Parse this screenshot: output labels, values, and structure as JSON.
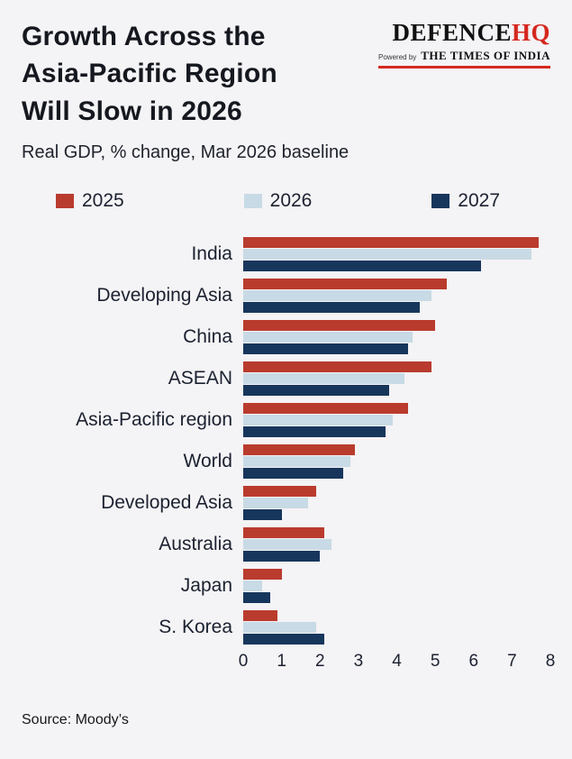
{
  "header": {
    "title_lines": [
      "Growth Across the",
      "Asia-Pacific Region",
      "Will Slow in 2026"
    ],
    "subtitle": "Real GDP, % change, Mar 2026 baseline",
    "logo": {
      "name_black": "DEFENCE",
      "name_red": "HQ",
      "powered_by": "Powered by",
      "brand": "THE TIMES OF INDIA",
      "accent_color": "#d5281e"
    }
  },
  "legend": [
    {
      "label": "2025",
      "color": "#b93b2e"
    },
    {
      "label": "2026",
      "color": "#c8dae5"
    },
    {
      "label": "2027",
      "color": "#17365c"
    }
  ],
  "chart_data": {
    "type": "bar",
    "orientation": "horizontal",
    "title": "Growth Across the Asia-Pacific Region Will Slow in 2026",
    "subtitle": "Real GDP, % change, Mar 2026 baseline",
    "categories": [
      "India",
      "Developing Asia",
      "China",
      "ASEAN",
      "Asia-Pacific region",
      "World",
      "Developed Asia",
      "Australia",
      "Japan",
      "S. Korea"
    ],
    "series": [
      {
        "name": "2025",
        "color": "#b93b2e",
        "values": [
          7.7,
          5.3,
          5.0,
          4.9,
          4.3,
          2.9,
          1.9,
          2.1,
          1.0,
          0.9
        ]
      },
      {
        "name": "2026",
        "color": "#c8dae5",
        "values": [
          7.5,
          4.9,
          4.4,
          4.2,
          3.9,
          2.8,
          1.7,
          2.3,
          0.5,
          1.9
        ]
      },
      {
        "name": "2027",
        "color": "#17365c",
        "values": [
          6.2,
          4.6,
          4.3,
          3.8,
          3.7,
          2.6,
          1.0,
          2.0,
          0.7,
          2.1
        ]
      }
    ],
    "xlim": [
      0,
      8
    ],
    "xticks": [
      0,
      1,
      2,
      3,
      4,
      5,
      6,
      7,
      8
    ],
    "xlabel": "",
    "ylabel": "",
    "grid": false,
    "legend_position": "top"
  },
  "source": "Source: Moody’s"
}
